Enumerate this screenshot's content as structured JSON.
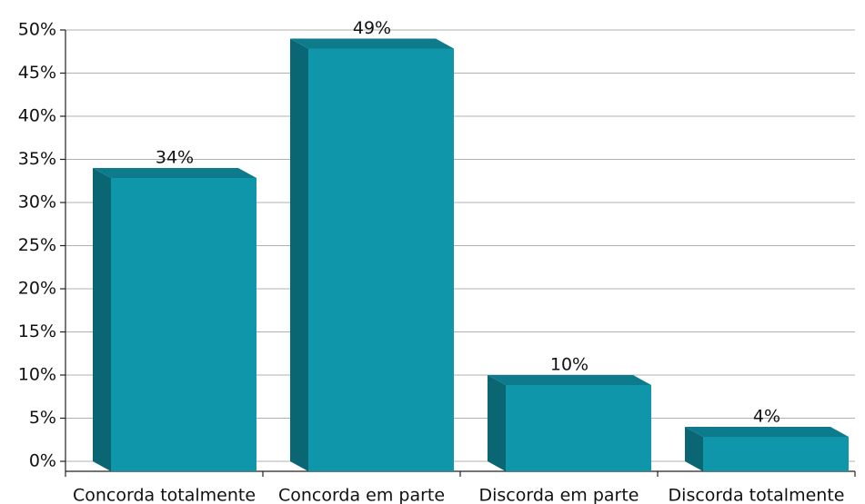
{
  "chart_data": {
    "type": "bar3d",
    "categories": [
      "Concorda totalmente",
      "Concorda em parte",
      "Discorda em parte",
      "Discorda totalmente"
    ],
    "values": [
      34,
      49,
      10,
      4
    ],
    "value_labels": [
      "34%",
      "49%",
      "10%",
      "4%"
    ],
    "color": "#1096aa",
    "ylim": [
      0,
      50
    ],
    "yticks": [
      {
        "value": 0,
        "label": "0%"
      },
      {
        "value": 5,
        "label": "5%"
      },
      {
        "value": 10,
        "label": "10%"
      },
      {
        "value": 15,
        "label": "15%"
      },
      {
        "value": 20,
        "label": "20%"
      },
      {
        "value": 25,
        "label": "25%"
      },
      {
        "value": 30,
        "label": "30%"
      },
      {
        "value": 35,
        "label": "35%"
      },
      {
        "value": 40,
        "label": "40%"
      },
      {
        "value": 45,
        "label": "45%"
      },
      {
        "value": 50,
        "label": "50%"
      }
    ],
    "grid": true
  }
}
